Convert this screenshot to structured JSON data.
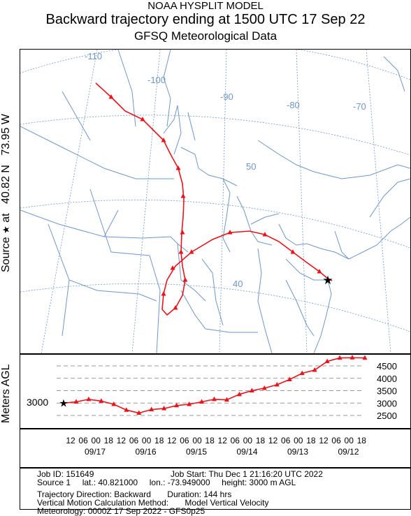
{
  "header": {
    "line1": "NOAA HYSPLIT MODEL",
    "line2": "Backward trajectory ending at 1500 UTC 17 Sep 22",
    "line3": "GFSQ Meteorological Data"
  },
  "side_label": {
    "prefix": "Source",
    "star": "★",
    "suffix": "at   40.82 N   73.95 W"
  },
  "map": {
    "lon_labels": [
      "-110",
      "-100",
      "-90",
      "-80",
      "-70"
    ],
    "lat_labels": [
      "50",
      "40"
    ],
    "coast_color": "#6f97c8",
    "grid_color": "#6f97c8",
    "trajectory_color": "#e8131b"
  },
  "chart_data": {
    "type": "line",
    "title": "",
    "ylabel": "Meters AGL",
    "yticks": [
      2500,
      3000,
      3500,
      4000,
      4500
    ],
    "start_height_label": "3000",
    "x_hour_labels": [
      "12",
      "06",
      "00",
      "18",
      "12",
      "06",
      "00",
      "18",
      "12",
      "06",
      "00",
      "18",
      "12",
      "06",
      "00",
      "18",
      "12",
      "06",
      "00",
      "18",
      "12",
      "06",
      "00",
      "18"
    ],
    "x_date_labels": [
      "09/17",
      "09/16",
      "09/15",
      "09/14",
      "09/13",
      "09/12"
    ],
    "series": [
      {
        "name": "",
        "x_hours_back": [
          0,
          6,
          12,
          18,
          24,
          30,
          36,
          42,
          48,
          54,
          60,
          66,
          72,
          78,
          84,
          90,
          96,
          102,
          108,
          114,
          120,
          126,
          132,
          138,
          144
        ],
        "values": [
          3000,
          3050,
          3150,
          3080,
          2950,
          2720,
          2600,
          2740,
          2780,
          2900,
          2950,
          3050,
          3150,
          3130,
          3350,
          3500,
          3600,
          3740,
          3950,
          4200,
          4330,
          4680,
          4820,
          4830,
          4820
        ]
      }
    ]
  },
  "info": {
    "job_id": "Job ID: 151649",
    "job_start": "Job Start: Thu Dec  1 21:16:20 UTC 2022",
    "source": "Source 1     lat.: 40.821000     lon.: -73.949000     height: 3000 m AGL",
    "direction": "Trajectory Direction: Backward       Duration: 144 hrs",
    "vertical": "Vertical Motion Calculation Method:       Model Vertical Velocity",
    "meteorology": "Meteorology: 0000Z 17 Sep 2022 - GFS0p25"
  }
}
